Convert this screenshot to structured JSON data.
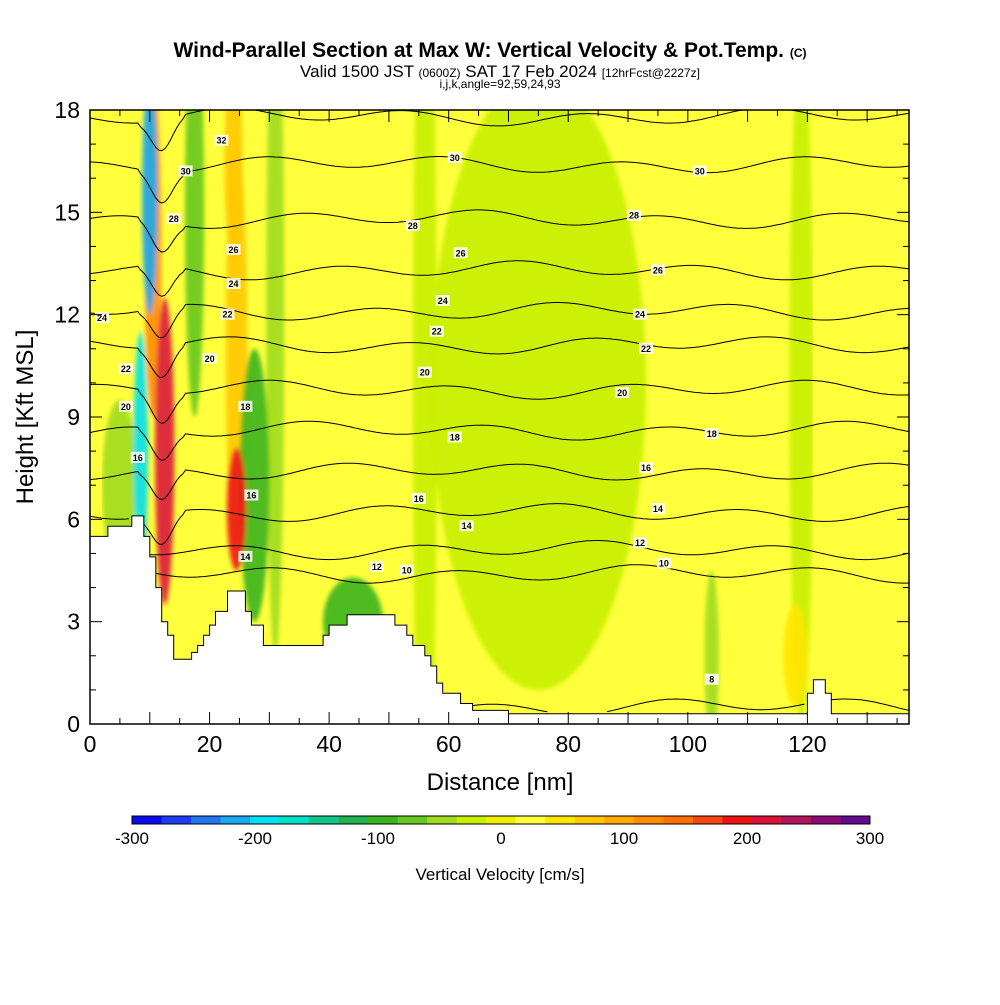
{
  "title": {
    "main": "Wind-Parallel Section at Max W: Vertical Velocity & Pot.Temp.",
    "main_unit": "(C)",
    "valid_a": "Valid 1500 JST",
    "valid_b": "(0600Z)",
    "valid_c": "SAT 17 Feb 2024",
    "valid_d": "[12hrFcst@2227z]",
    "ijk": "i,j,k,angle=92,59,24,93"
  },
  "chart_data": {
    "type": "heatmap",
    "xlabel": "Distance [nm]",
    "ylabel": "Height [Kft MSL]",
    "xlim": [
      0,
      137
    ],
    "ylim": [
      0,
      18
    ],
    "x_ticks": [
      0,
      20,
      40,
      60,
      80,
      100,
      120
    ],
    "y_ticks": [
      0,
      3,
      6,
      9,
      12,
      15,
      18
    ],
    "background_value_cm_s": 20,
    "velocity_features": [
      {
        "x": 12.5,
        "y": 8,
        "x_width": 1.6,
        "y_width": 4.5,
        "value": 220
      },
      {
        "x": 10.5,
        "y": 14,
        "x_width": 1.4,
        "y_width": 5,
        "value": 130
      },
      {
        "x": 10,
        "y": 15.5,
        "x_width": 1.3,
        "y_width": 3.5,
        "value": -220
      },
      {
        "x": 8.5,
        "y": 8,
        "x_width": 1.2,
        "y_width": 3.5,
        "value": -200
      },
      {
        "x": 24.5,
        "y": 6.3,
        "x_width": 1.6,
        "y_width": 1.8,
        "value": 190
      },
      {
        "x": 24.5,
        "y": 11,
        "x_width": 1.8,
        "y_width": 6,
        "value": 60
      },
      {
        "x": 24,
        "y": 16.5,
        "x_width": 1.5,
        "y_width": 3,
        "value": 80
      },
      {
        "x": 27.5,
        "y": 7,
        "x_width": 2.5,
        "y_width": 4,
        "value": -90
      },
      {
        "x": 17.5,
        "y": 15,
        "x_width": 1.6,
        "y_width": 6,
        "value": -70
      },
      {
        "x": 31,
        "y": 12,
        "x_width": 1.5,
        "y_width": 10,
        "value": -40
      },
      {
        "x": 44,
        "y": 3,
        "x_width": 5,
        "y_width": 1.3,
        "value": -90
      },
      {
        "x": 56,
        "y": 10,
        "x_width": 2,
        "y_width": 14,
        "value": -35
      },
      {
        "x": 75,
        "y": 10,
        "x_width": 18,
        "y_width": 9,
        "value": -15
      },
      {
        "x": 104,
        "y": 2,
        "x_width": 1.2,
        "y_width": 2.5,
        "value": -50
      },
      {
        "x": 119,
        "y": 10,
        "x_width": 2,
        "y_width": 10,
        "value": -20
      },
      {
        "x": 5,
        "y": 7,
        "x_width": 3,
        "y_width": 2.5,
        "value": -40
      },
      {
        "x": 118,
        "y": 2,
        "x_width": 2,
        "y_width": 1.5,
        "value": 40
      }
    ],
    "terrain_kft": [
      [
        0,
        5.5
      ],
      [
        3,
        5.5
      ],
      [
        3,
        5.8
      ],
      [
        7,
        5.8
      ],
      [
        7,
        6.1
      ],
      [
        9,
        6.1
      ],
      [
        9,
        5.5
      ],
      [
        10,
        5.5
      ],
      [
        10,
        4.9
      ],
      [
        11,
        4.9
      ],
      [
        11,
        4
      ],
      [
        12,
        4
      ],
      [
        12,
        3
      ],
      [
        13,
        3
      ],
      [
        13,
        2.6
      ],
      [
        14,
        2.6
      ],
      [
        14,
        1.9
      ],
      [
        17,
        1.9
      ],
      [
        17,
        2.1
      ],
      [
        18,
        2.1
      ],
      [
        18,
        2.3
      ],
      [
        19,
        2.3
      ],
      [
        19,
        2.6
      ],
      [
        20,
        2.6
      ],
      [
        20,
        2.9
      ],
      [
        21,
        2.9
      ],
      [
        21,
        3.3
      ],
      [
        23,
        3.3
      ],
      [
        23,
        3.9
      ],
      [
        26,
        3.9
      ],
      [
        26,
        3.3
      ],
      [
        27,
        3.3
      ],
      [
        27,
        2.9
      ],
      [
        29,
        2.9
      ],
      [
        29,
        2.3
      ],
      [
        39,
        2.3
      ],
      [
        39,
        2.6
      ],
      [
        40,
        2.6
      ],
      [
        40,
        2.9
      ],
      [
        43,
        2.9
      ],
      [
        43,
        3.2
      ],
      [
        51,
        3.2
      ],
      [
        51,
        2.9
      ],
      [
        53,
        2.9
      ],
      [
        53,
        2.6
      ],
      [
        54,
        2.6
      ],
      [
        54,
        2.3
      ],
      [
        56,
        2.3
      ],
      [
        56,
        2
      ],
      [
        57,
        2
      ],
      [
        57,
        1.7
      ],
      [
        58,
        1.7
      ],
      [
        58,
        1.2
      ],
      [
        59,
        1.2
      ],
      [
        59,
        0.9
      ],
      [
        62,
        0.9
      ],
      [
        62,
        0.6
      ],
      [
        64,
        0.6
      ],
      [
        64,
        0.4
      ],
      [
        70,
        0.4
      ],
      [
        70,
        0.3
      ],
      [
        120,
        0.3
      ],
      [
        120,
        0.9
      ],
      [
        121,
        0.9
      ],
      [
        121,
        1.3
      ],
      [
        123,
        1.3
      ],
      [
        123,
        0.9
      ],
      [
        124,
        0.9
      ],
      [
        124,
        0.3
      ],
      [
        137,
        0.3
      ],
      [
        137,
        0
      ],
      [
        0,
        0
      ]
    ],
    "contour_baselines_kft": [
      {
        "value": 8,
        "y": 0.5
      },
      {
        "value": 10,
        "y": 4.4
      },
      {
        "value": 12,
        "y": 5.1
      },
      {
        "value": 14,
        "y": 6.2
      },
      {
        "value": 16,
        "y": 7.4
      },
      {
        "value": 18,
        "y": 8.6
      },
      {
        "value": 20,
        "y": 9.8
      },
      {
        "value": 22,
        "y": 11.1
      },
      {
        "value": 24,
        "y": 12.1
      },
      {
        "value": 26,
        "y": 13.3
      },
      {
        "value": 28,
        "y": 14.8
      },
      {
        "value": 30,
        "y": 16.4
      },
      {
        "value": 32,
        "y": 17.8
      }
    ],
    "contour_labels": [
      {
        "text": "32",
        "x": 22,
        "y": 17.1
      },
      {
        "text": "30",
        "x": 16,
        "y": 16.2
      },
      {
        "text": "30",
        "x": 61,
        "y": 16.6
      },
      {
        "text": "30",
        "x": 102,
        "y": 16.2
      },
      {
        "text": "28",
        "x": 14,
        "y": 14.8
      },
      {
        "text": "28",
        "x": 54,
        "y": 14.6
      },
      {
        "text": "28",
        "x": 91,
        "y": 14.9
      },
      {
        "text": "26",
        "x": 24,
        "y": 13.9
      },
      {
        "text": "26",
        "x": 62,
        "y": 13.8
      },
      {
        "text": "26",
        "x": 95,
        "y": 13.3
      },
      {
        "text": "24",
        "x": 24,
        "y": 12.9
      },
      {
        "text": "24",
        "x": 59,
        "y": 12.4
      },
      {
        "text": "24",
        "x": 92,
        "y": 12
      },
      {
        "text": "24",
        "x": 2,
        "y": 11.9
      },
      {
        "text": "22",
        "x": 23,
        "y": 12
      },
      {
        "text": "22",
        "x": 58,
        "y": 11.5
      },
      {
        "text": "22",
        "x": 93,
        "y": 11
      },
      {
        "text": "22",
        "x": 6,
        "y": 10.4
      },
      {
        "text": "20",
        "x": 20,
        "y": 10.7
      },
      {
        "text": "20",
        "x": 56,
        "y": 10.3
      },
      {
        "text": "20",
        "x": 89,
        "y": 9.7
      },
      {
        "text": "20",
        "x": 6,
        "y": 9.3
      },
      {
        "text": "18",
        "x": 26,
        "y": 9.3
      },
      {
        "text": "18",
        "x": 61,
        "y": 8.4
      },
      {
        "text": "18",
        "x": 104,
        "y": 8.5
      },
      {
        "text": "16",
        "x": 8,
        "y": 7.8
      },
      {
        "text": "16",
        "x": 27,
        "y": 6.7
      },
      {
        "text": "16",
        "x": 55,
        "y": 6.6
      },
      {
        "text": "16",
        "x": 93,
        "y": 7.5
      },
      {
        "text": "14",
        "x": 26,
        "y": 4.9
      },
      {
        "text": "14",
        "x": 63,
        "y": 5.8
      },
      {
        "text": "14",
        "x": 95,
        "y": 6.3
      },
      {
        "text": "12",
        "x": 48,
        "y": 4.6
      },
      {
        "text": "12",
        "x": 92,
        "y": 5.3
      },
      {
        "text": "10",
        "x": 53,
        "y": 4.5
      },
      {
        "text": "10",
        "x": 96,
        "y": 4.7
      },
      {
        "text": "8",
        "x": 104,
        "y": 1.3
      }
    ]
  },
  "colorbar": {
    "label": "Vertical Velocity [cm/s]",
    "ticks": [
      -300,
      -200,
      -100,
      0,
      100,
      200,
      300
    ],
    "tick_labels": [
      "-300",
      "-200",
      "-100",
      "0",
      "100",
      "200",
      "300"
    ],
    "colors": [
      "#0a0aee",
      "#1f3cf5",
      "#1f78f0",
      "#19a8f0",
      "#00e0f0",
      "#00e0c8",
      "#10c88c",
      "#20b450",
      "#3cb41e",
      "#66c81e",
      "#a0dc1e",
      "#c8f000",
      "#f0f000",
      "#ffff3c",
      "#ffe600",
      "#ffc800",
      "#ffaa00",
      "#ff8c00",
      "#ff6e00",
      "#f54614",
      "#ee1414",
      "#dc143c",
      "#b4145a",
      "#8c0a78",
      "#640a8c"
    ]
  }
}
